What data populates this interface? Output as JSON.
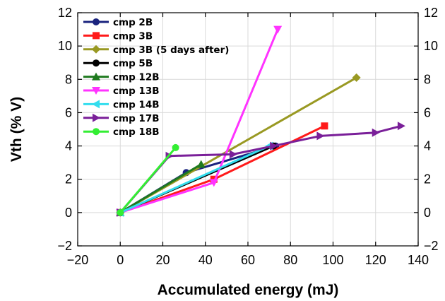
{
  "chart_data": {
    "type": "line",
    "title": "",
    "xlabel": "Accumulated energy (mJ)",
    "ylabel": "Vth (% V)",
    "xlim": [
      -20,
      140
    ],
    "ylim": [
      -2,
      12
    ],
    "x_ticks": [
      -20,
      0,
      20,
      40,
      60,
      80,
      100,
      120,
      140
    ],
    "y_ticks": [
      -2,
      0,
      2,
      4,
      6,
      8,
      10,
      12
    ],
    "grid": true,
    "right_axis_mirrored": true,
    "legend_placement": "top-left",
    "series": [
      {
        "name": "cmp 2B",
        "color": "#1a237e",
        "marker": "circle",
        "x": [
          0,
          31,
          73
        ],
        "y": [
          0,
          2.4,
          4.0
        ]
      },
      {
        "name": "cmp 3B",
        "color": "#ff1a1a",
        "marker": "square",
        "x": [
          0,
          44,
          96
        ],
        "y": [
          0,
          2.0,
          5.2
        ]
      },
      {
        "name": "cmp 3B (5 days after)",
        "color": "#999922",
        "marker": "diamond",
        "x": [
          0,
          111
        ],
        "y": [
          0,
          8.1
        ]
      },
      {
        "name": "cmp 5B",
        "color": "#000000",
        "marker": "circle",
        "x": [
          0,
          72
        ],
        "y": [
          0,
          4.0
        ]
      },
      {
        "name": "cmp 12B",
        "color": "#1f7a1f",
        "marker": "triangle-up",
        "x": [
          0,
          38
        ],
        "y": [
          0,
          2.9
        ]
      },
      {
        "name": "cmp 13B",
        "color": "#ff33ff",
        "marker": "triangle-down",
        "x": [
          0,
          44,
          74
        ],
        "y": [
          0,
          1.8,
          11.0
        ]
      },
      {
        "name": "cmp 14B",
        "color": "#33ddee",
        "marker": "triangle-left",
        "x": [
          0,
          70
        ],
        "y": [
          0,
          4.0
        ]
      },
      {
        "name": "cmp 17B",
        "color": "#7a1f99",
        "marker": "triangle-right",
        "x": [
          0,
          23,
          53,
          72,
          94,
          120,
          132
        ],
        "y": [
          0,
          3.4,
          3.5,
          4.0,
          4.6,
          4.8,
          5.2
        ]
      },
      {
        "name": "cmp 18B",
        "color": "#33ee33",
        "marker": "circle",
        "x": [
          0,
          26
        ],
        "y": [
          0,
          3.9
        ]
      }
    ]
  }
}
